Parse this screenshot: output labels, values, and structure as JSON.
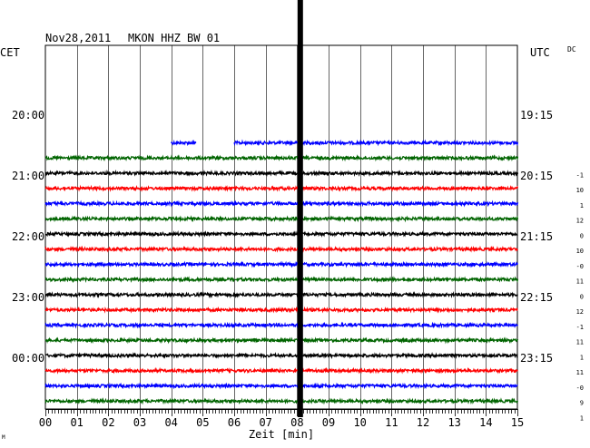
{
  "header": {
    "date": "Nov28,2011",
    "station": "MKON HHZ BW 01"
  },
  "left_axis_label": "CET",
  "right_axis_label": "UTC",
  "dc_label": "DC",
  "xlabel": "Zeit [min]",
  "corner_mark": "M",
  "colors": {
    "green": "#006400",
    "black": "#000000",
    "red": "#ff0000",
    "blue": "#0000ff",
    "axis": "#000000",
    "grid": "#000000",
    "background": "#ffffff"
  },
  "chart_data": {
    "type": "line",
    "title": "Nov28,2011 MKON HHZ BW 01",
    "xlabel": "Zeit [min]",
    "x_ticks": [
      "00",
      "01",
      "02",
      "03",
      "04",
      "05",
      "06",
      "07",
      "08",
      "09",
      "10",
      "11",
      "12",
      "13",
      "14",
      "15"
    ],
    "xlim": [
      0,
      15
    ],
    "left_time_ticks": [
      "20:00",
      "21:00",
      "22:00",
      "23:00",
      "00:00"
    ],
    "right_time_ticks": [
      "19:15",
      "20:15",
      "21:15",
      "22:15",
      "23:15"
    ],
    "grid": true,
    "event_marker_min": 8.1,
    "traces": [
      {
        "color": "blue",
        "dc": "",
        "segments": [
          [
            4.0,
            4.8
          ],
          [
            6.0,
            15.0
          ]
        ]
      },
      {
        "color": "green",
        "dc": "-1",
        "segments": [
          [
            0,
            15
          ]
        ]
      },
      {
        "color": "black",
        "dc": "10",
        "segments": [
          [
            0,
            15
          ]
        ]
      },
      {
        "color": "red",
        "dc": "1",
        "segments": [
          [
            0,
            15
          ]
        ]
      },
      {
        "color": "blue",
        "dc": "12",
        "segments": [
          [
            0,
            15
          ]
        ]
      },
      {
        "color": "green",
        "dc": "0",
        "segments": [
          [
            0,
            15
          ]
        ]
      },
      {
        "color": "black",
        "dc": "10",
        "segments": [
          [
            0,
            15
          ]
        ]
      },
      {
        "color": "red",
        "dc": "-0",
        "segments": [
          [
            0,
            15
          ]
        ]
      },
      {
        "color": "blue",
        "dc": "11",
        "segments": [
          [
            0,
            15
          ]
        ]
      },
      {
        "color": "green",
        "dc": "0",
        "segments": [
          [
            0,
            15
          ]
        ]
      },
      {
        "color": "black",
        "dc": "12",
        "segments": [
          [
            0,
            15
          ]
        ]
      },
      {
        "color": "red",
        "dc": "-1",
        "segments": [
          [
            0,
            15
          ]
        ]
      },
      {
        "color": "blue",
        "dc": "11",
        "segments": [
          [
            0,
            15
          ]
        ]
      },
      {
        "color": "green",
        "dc": "1",
        "segments": [
          [
            0,
            15
          ]
        ]
      },
      {
        "color": "black",
        "dc": "11",
        "segments": [
          [
            0,
            15
          ]
        ]
      },
      {
        "color": "red",
        "dc": "-0",
        "segments": [
          [
            0,
            15
          ]
        ]
      },
      {
        "color": "blue",
        "dc": "9",
        "segments": [
          [
            0,
            15
          ]
        ]
      },
      {
        "color": "green",
        "dc": "1",
        "segments": [
          [
            0,
            15
          ]
        ]
      }
    ]
  }
}
